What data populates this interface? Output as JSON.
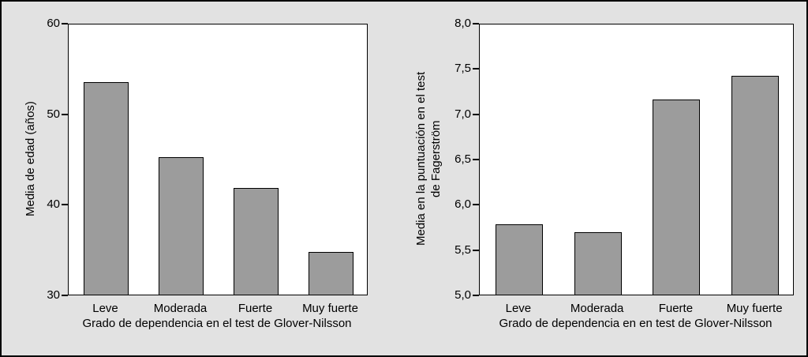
{
  "colors": {
    "background": "#e2e2e2",
    "plot_background": "#ffffff",
    "foreground": "#000000",
    "bar_fill": "#9c9c9c"
  },
  "chart_data": [
    {
      "type": "bar",
      "categories": [
        "Leve",
        "Moderada",
        "Fuerte",
        "Muy fuerte"
      ],
      "values": [
        53.5,
        45.2,
        41.8,
        34.7
      ],
      "title": "",
      "xlabel": "Grado de dependencia en el test de Glover-Nilsson",
      "ylabel": "Media de edad (años)",
      "ylim": [
        30,
        60
      ],
      "yticks": [
        30,
        40,
        50,
        60
      ],
      "ytick_labels": [
        "30",
        "40",
        "50",
        "60"
      ],
      "grid": false,
      "legend": "none",
      "bar_color": "#9c9c9c"
    },
    {
      "type": "bar",
      "categories": [
        "Leve",
        "Moderada",
        "Fuerte",
        "Muy fuerte"
      ],
      "values": [
        5.78,
        5.69,
        7.15,
        7.42
      ],
      "title": "",
      "xlabel": "Grado de dependencia en en test de Glover-Nilsson",
      "ylabel": "Media en la puntuación en el test\nde Fagerström",
      "ylim": [
        5.0,
        8.0
      ],
      "yticks": [
        5.0,
        5.5,
        6.0,
        6.5,
        7.0,
        7.5,
        8.0
      ],
      "ytick_labels": [
        "5,0",
        "5,5",
        "6,0",
        "6,5",
        "7,0",
        "7,5",
        "8,0"
      ],
      "grid": false,
      "legend": "none",
      "bar_color": "#9c9c9c"
    }
  ]
}
